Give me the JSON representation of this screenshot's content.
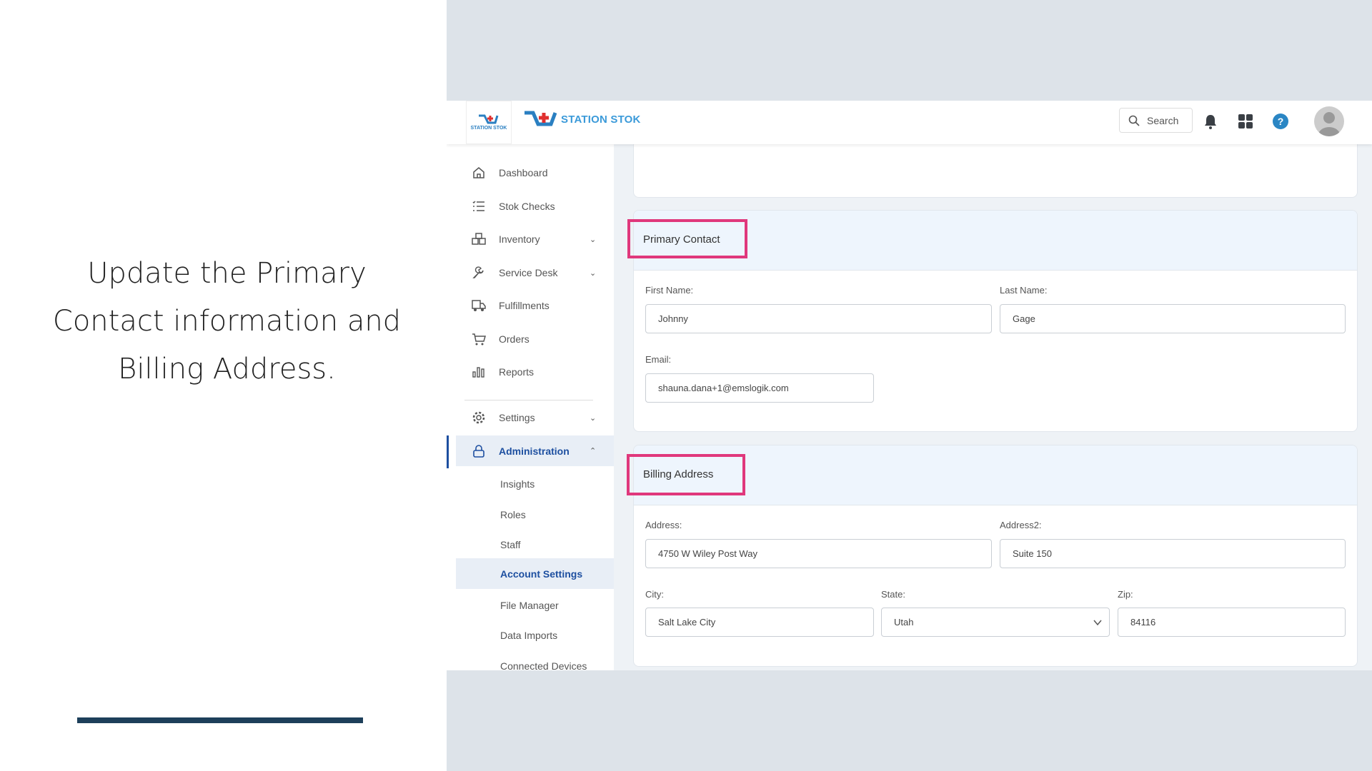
{
  "caption": {
    "text": "Update the Primary Contact information and Billing Address."
  },
  "header": {
    "logo_text": "STATION STOK",
    "search_label": "Search",
    "accent": "#3b9ad9",
    "icons": [
      "search-icon",
      "bell-icon",
      "apps-grid-icon",
      "help-icon",
      "avatar"
    ]
  },
  "sidebar": {
    "items": [
      {
        "label": "Dashboard",
        "icon": "home-icon"
      },
      {
        "label": "Stok Checks",
        "icon": "checklist-icon"
      },
      {
        "label": "Inventory",
        "icon": "boxes-icon",
        "expandable": true
      },
      {
        "label": "Service Desk",
        "icon": "wrench-icon",
        "expandable": true
      },
      {
        "label": "Fulfillments",
        "icon": "truck-icon"
      },
      {
        "label": "Orders",
        "icon": "cart-icon"
      },
      {
        "label": "Reports",
        "icon": "bar-chart-icon"
      },
      {
        "label": "Settings",
        "icon": "gear-icon",
        "expandable": true
      },
      {
        "label": "Administration",
        "icon": "lock-icon",
        "expanded": true
      }
    ],
    "admin_items": [
      "Insights",
      "Roles",
      "Staff",
      "Account Settings",
      "File Manager",
      "Data Imports",
      "Connected Devices"
    ],
    "active_item": "Account Settings",
    "active_color": "#1d4fa0"
  },
  "primary_contact": {
    "title": "Primary Contact",
    "first_name_label": "First Name:",
    "first_name": "Johnny",
    "last_name_label": "Last Name:",
    "last_name": "Gage",
    "email_label": "Email:",
    "email": "shauna.dana+1@emslogik.com"
  },
  "billing_address": {
    "title": "Billing Address",
    "address_label": "Address:",
    "address": "4750 W Wiley Post Way",
    "address2_label": "Address2:",
    "address2": "Suite 150",
    "city_label": "City:",
    "city": "Salt Lake City",
    "state_label": "State:",
    "state": "Utah",
    "zip_label": "Zip:",
    "zip": "84116"
  },
  "highlight_color": "#e0387c"
}
